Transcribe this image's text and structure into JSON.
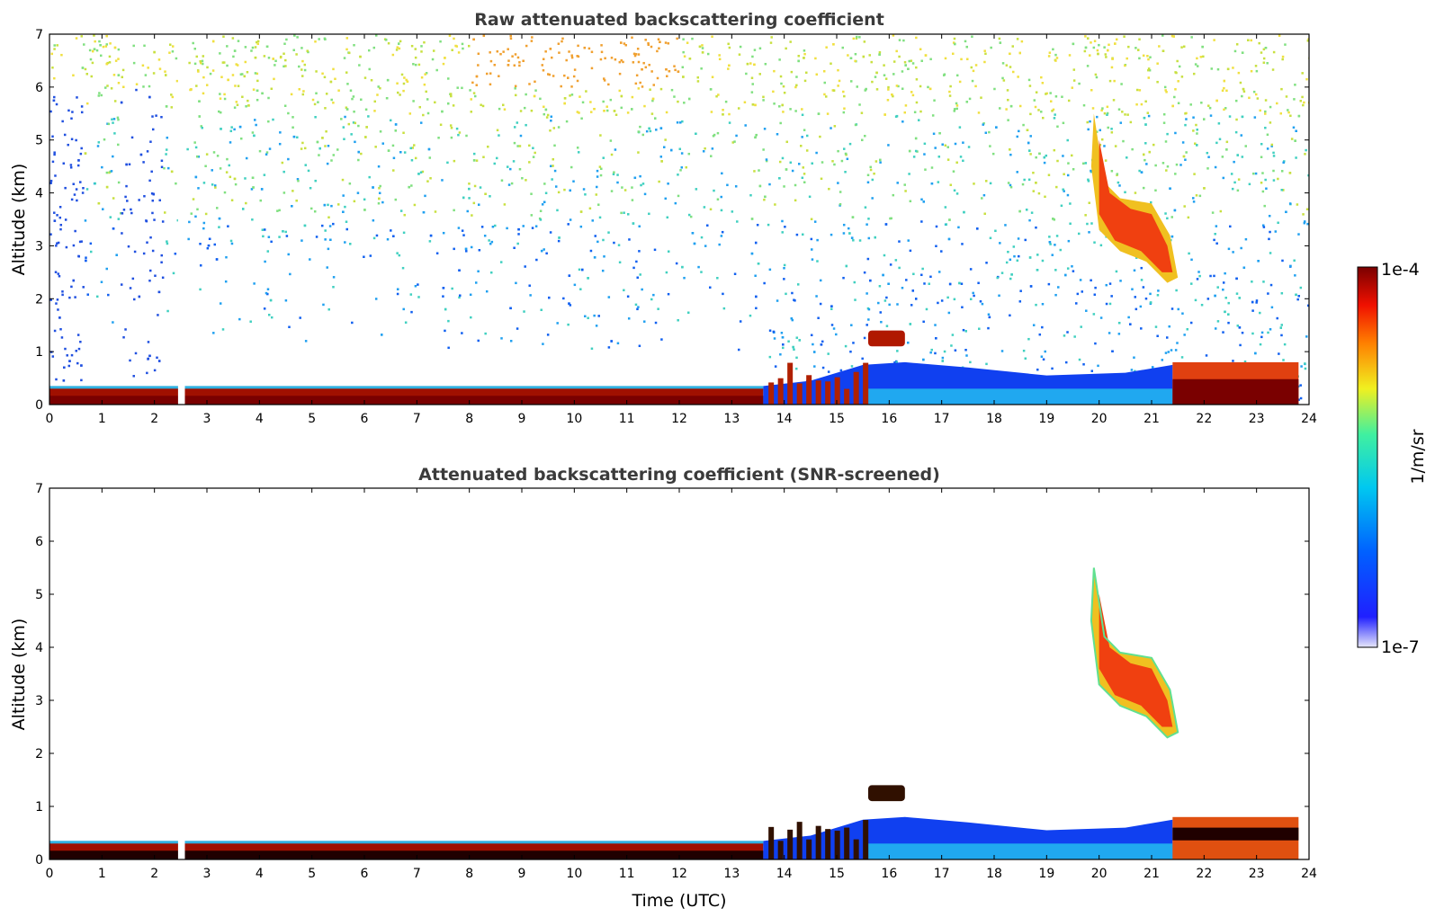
{
  "chart_data": [
    {
      "type": "heatmap",
      "title": "Raw attenuated backscattering coefficient",
      "xlabel": "",
      "ylabel": "Altitude (km)",
      "xlim": [
        0,
        24
      ],
      "ylim": [
        0,
        7
      ],
      "x_ticks": [
        "0",
        "1",
        "2",
        "3",
        "4",
        "5",
        "6",
        "7",
        "8",
        "9",
        "10",
        "11",
        "12",
        "13",
        "14",
        "15",
        "16",
        "17",
        "18",
        "19",
        "20",
        "21",
        "22",
        "23",
        "24"
      ],
      "y_ticks": [
        "0",
        "1",
        "2",
        "3",
        "4",
        "5",
        "6",
        "7"
      ],
      "features": [
        {
          "name": "boundary layer aerosol",
          "x_range": [
            0,
            13.6
          ],
          "altitude_top_km": 0.3,
          "level": "high"
        },
        {
          "name": "data gap",
          "x_range": [
            2.45,
            2.58
          ]
        },
        {
          "name": "cloud",
          "x_range": [
            19.9,
            21.5
          ],
          "altitude_range_km": [
            2.3,
            5.5
          ],
          "level": "high"
        },
        {
          "name": "elevated layer",
          "x_range": [
            15.6,
            16.3
          ],
          "altitude_range_km": [
            1.1,
            1.4
          ],
          "level": "high"
        },
        {
          "name": "night boundary layer",
          "x_range": [
            13.6,
            21.4
          ],
          "altitude_top_km": 0.8,
          "level": "low"
        },
        {
          "name": "evening aerosol",
          "x_range": [
            21.4,
            23.8
          ],
          "altitude_top_km": 0.8,
          "level": "high"
        }
      ]
    },
    {
      "type": "heatmap",
      "title": "Attenuated backscattering coefficient (SNR-screened)",
      "xlabel": "Time (UTC)",
      "ylabel": "Altitude (km)",
      "xlim": [
        0,
        24
      ],
      "ylim": [
        0,
        7
      ],
      "x_ticks": [
        "0",
        "1",
        "2",
        "3",
        "4",
        "5",
        "6",
        "7",
        "8",
        "9",
        "10",
        "11",
        "12",
        "13",
        "14",
        "15",
        "16",
        "17",
        "18",
        "19",
        "20",
        "21",
        "22",
        "23",
        "24"
      ],
      "y_ticks": [
        "0",
        "1",
        "2",
        "3",
        "4",
        "5",
        "6",
        "7"
      ],
      "features": [
        {
          "name": "boundary layer aerosol",
          "x_range": [
            0,
            13.6
          ],
          "altitude_top_km": 0.3,
          "level": "high"
        },
        {
          "name": "cloud",
          "x_range": [
            19.9,
            21.5
          ],
          "altitude_range_km": [
            2.3,
            5.5
          ],
          "level": "high"
        },
        {
          "name": "night boundary layer",
          "x_range": [
            13.6,
            21.4
          ],
          "altitude_top_km": 0.8,
          "level": "low"
        }
      ]
    }
  ],
  "colorbar": {
    "label": "1/m/sr",
    "max_label": "1e-4",
    "min_label": "1e-7",
    "scale": "log",
    "colormap": [
      "#e6e6fa",
      "#0000ff",
      "#00bfff",
      "#00ff80",
      "#ffff00",
      "#ff8000",
      "#ff0000",
      "#800000"
    ]
  }
}
